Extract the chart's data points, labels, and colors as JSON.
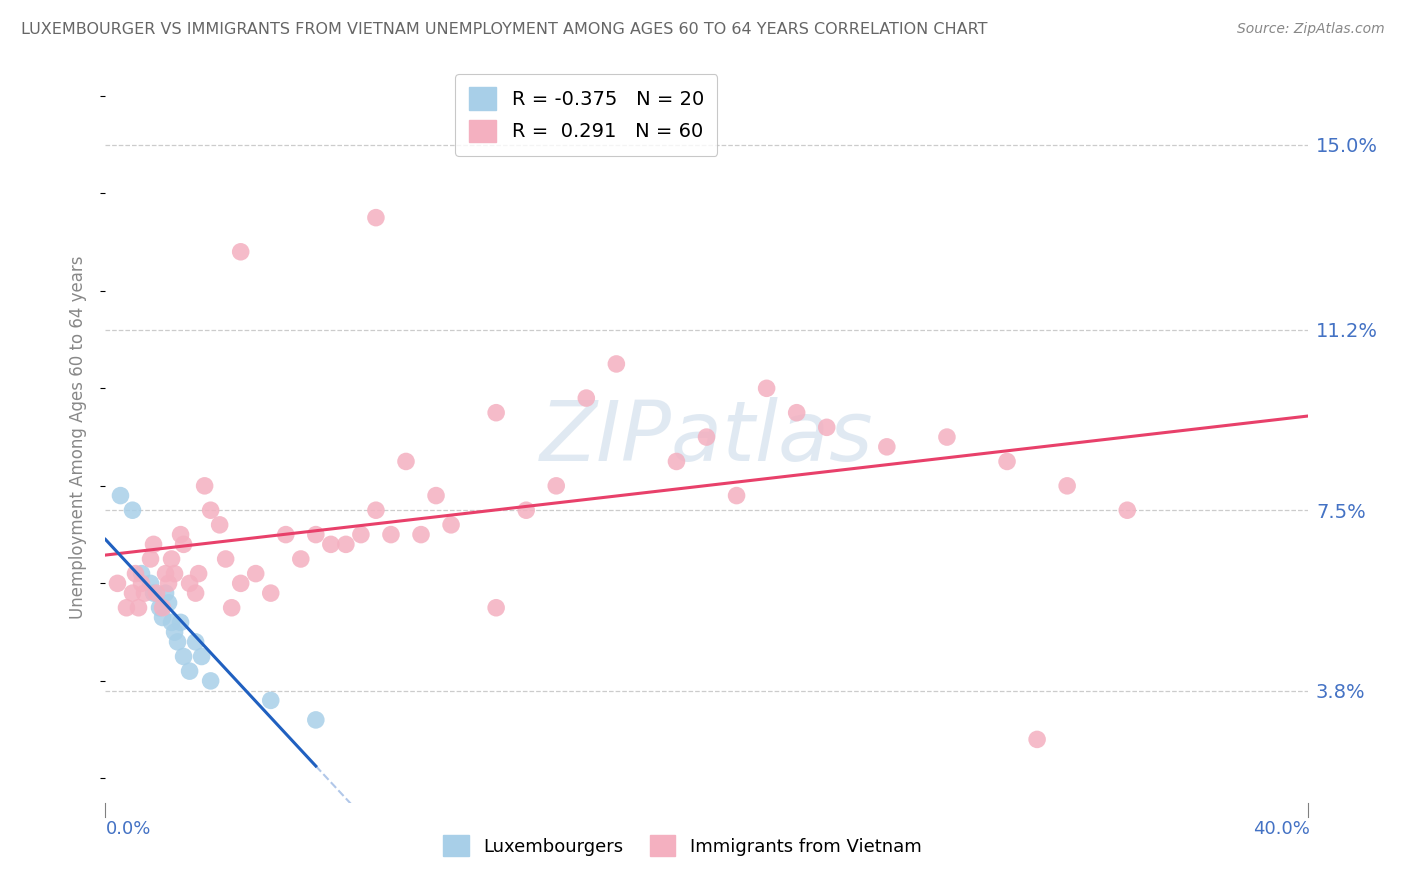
{
  "title": "LUXEMBOURGER VS IMMIGRANTS FROM VIETNAM UNEMPLOYMENT AMONG AGES 60 TO 64 YEARS CORRELATION CHART",
  "source": "Source: ZipAtlas.com",
  "ylabel": "Unemployment Among Ages 60 to 64 years",
  "ytick_labels": [
    "3.8%",
    "7.5%",
    "11.2%",
    "15.0%"
  ],
  "ytick_values": [
    3.8,
    7.5,
    11.2,
    15.0
  ],
  "xlim": [
    0.0,
    40.0
  ],
  "ylim": [
    1.5,
    16.5
  ],
  "legend_blue_R": "-0.375",
  "legend_blue_N": "20",
  "legend_pink_R": "0.291",
  "legend_pink_N": "60",
  "blue_color": "#a8cfe8",
  "pink_color": "#f4b0c0",
  "blue_line_color": "#2060c0",
  "pink_line_color": "#e8406a",
  "blue_label": "Luxembourgers",
  "pink_label": "Immigrants from Vietnam",
  "watermark": "ZIPatlas",
  "blue_points": [
    [
      0.5,
      7.8
    ],
    [
      0.9,
      7.5
    ],
    [
      1.2,
      6.2
    ],
    [
      1.5,
      6.0
    ],
    [
      1.6,
      5.8
    ],
    [
      1.8,
      5.5
    ],
    [
      1.9,
      5.3
    ],
    [
      2.0,
      5.8
    ],
    [
      2.1,
      5.6
    ],
    [
      2.2,
      5.2
    ],
    [
      2.3,
      5.0
    ],
    [
      2.4,
      4.8
    ],
    [
      2.5,
      5.2
    ],
    [
      2.6,
      4.5
    ],
    [
      2.8,
      4.2
    ],
    [
      3.0,
      4.8
    ],
    [
      3.2,
      4.5
    ],
    [
      3.5,
      4.0
    ],
    [
      5.5,
      3.6
    ],
    [
      7.0,
      3.2
    ]
  ],
  "pink_points": [
    [
      0.4,
      6.0
    ],
    [
      0.7,
      5.5
    ],
    [
      0.9,
      5.8
    ],
    [
      1.0,
      6.2
    ],
    [
      1.1,
      5.5
    ],
    [
      1.2,
      6.0
    ],
    [
      1.3,
      5.8
    ],
    [
      1.5,
      6.5
    ],
    [
      1.6,
      6.8
    ],
    [
      1.7,
      5.8
    ],
    [
      1.9,
      5.5
    ],
    [
      2.0,
      6.2
    ],
    [
      2.1,
      6.0
    ],
    [
      2.2,
      6.5
    ],
    [
      2.3,
      6.2
    ],
    [
      2.5,
      7.0
    ],
    [
      2.6,
      6.8
    ],
    [
      2.8,
      6.0
    ],
    [
      3.0,
      5.8
    ],
    [
      3.1,
      6.2
    ],
    [
      3.3,
      8.0
    ],
    [
      3.5,
      7.5
    ],
    [
      3.8,
      7.2
    ],
    [
      4.0,
      6.5
    ],
    [
      4.2,
      5.5
    ],
    [
      4.5,
      6.0
    ],
    [
      5.0,
      6.2
    ],
    [
      5.5,
      5.8
    ],
    [
      6.0,
      7.0
    ],
    [
      6.5,
      6.5
    ],
    [
      7.0,
      7.0
    ],
    [
      7.5,
      6.8
    ],
    [
      8.0,
      6.8
    ],
    [
      8.5,
      7.0
    ],
    [
      9.0,
      7.5
    ],
    [
      9.5,
      7.0
    ],
    [
      10.0,
      8.5
    ],
    [
      10.5,
      7.0
    ],
    [
      11.0,
      7.8
    ],
    [
      11.5,
      7.2
    ],
    [
      13.0,
      9.5
    ],
    [
      14.0,
      7.5
    ],
    [
      15.0,
      8.0
    ],
    [
      16.0,
      9.8
    ],
    [
      17.0,
      10.5
    ],
    [
      19.0,
      8.5
    ],
    [
      20.0,
      9.0
    ],
    [
      21.0,
      7.8
    ],
    [
      22.0,
      10.0
    ],
    [
      23.0,
      9.5
    ],
    [
      24.0,
      9.2
    ],
    [
      26.0,
      8.8
    ],
    [
      28.0,
      9.0
    ],
    [
      30.0,
      8.5
    ],
    [
      32.0,
      8.0
    ],
    [
      34.0,
      7.5
    ],
    [
      9.0,
      13.5
    ],
    [
      4.5,
      12.8
    ],
    [
      13.0,
      5.5
    ],
    [
      31.0,
      2.8
    ]
  ]
}
